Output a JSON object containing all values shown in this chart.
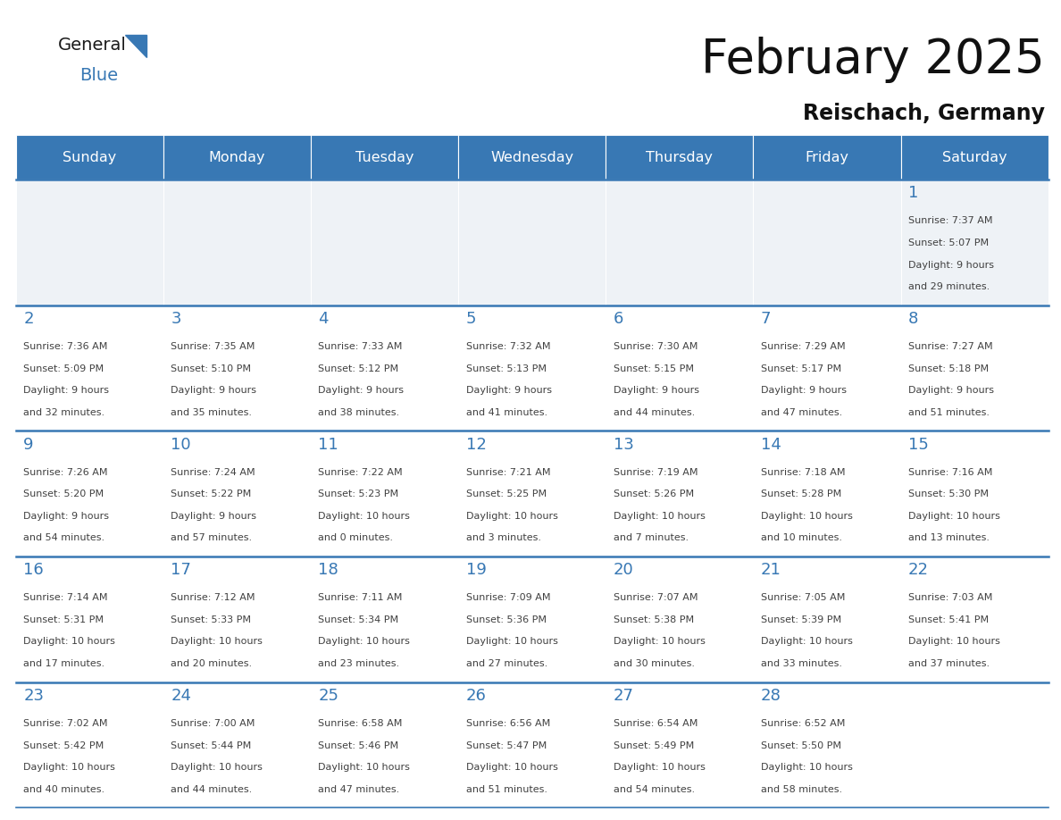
{
  "title": "February 2025",
  "subtitle": "Reischach, Germany",
  "header_color": "#3878b4",
  "header_text_color": "#ffffff",
  "day_names": [
    "Sunday",
    "Monday",
    "Tuesday",
    "Wednesday",
    "Thursday",
    "Friday",
    "Saturday"
  ],
  "background_color": "#ffffff",
  "separator_color": "#3878b4",
  "date_color": "#3878b4",
  "text_color": "#404040",
  "calendar": [
    [
      null,
      null,
      null,
      null,
      null,
      null,
      {
        "day": 1,
        "sunrise": "7:37 AM",
        "sunset": "5:07 PM",
        "daylight": "9 hours and 29 minutes."
      }
    ],
    [
      {
        "day": 2,
        "sunrise": "7:36 AM",
        "sunset": "5:09 PM",
        "daylight": "9 hours and 32 minutes."
      },
      {
        "day": 3,
        "sunrise": "7:35 AM",
        "sunset": "5:10 PM",
        "daylight": "9 hours and 35 minutes."
      },
      {
        "day": 4,
        "sunrise": "7:33 AM",
        "sunset": "5:12 PM",
        "daylight": "9 hours and 38 minutes."
      },
      {
        "day": 5,
        "sunrise": "7:32 AM",
        "sunset": "5:13 PM",
        "daylight": "9 hours and 41 minutes."
      },
      {
        "day": 6,
        "sunrise": "7:30 AM",
        "sunset": "5:15 PM",
        "daylight": "9 hours and 44 minutes."
      },
      {
        "day": 7,
        "sunrise": "7:29 AM",
        "sunset": "5:17 PM",
        "daylight": "9 hours and 47 minutes."
      },
      {
        "day": 8,
        "sunrise": "7:27 AM",
        "sunset": "5:18 PM",
        "daylight": "9 hours and 51 minutes."
      }
    ],
    [
      {
        "day": 9,
        "sunrise": "7:26 AM",
        "sunset": "5:20 PM",
        "daylight": "9 hours and 54 minutes."
      },
      {
        "day": 10,
        "sunrise": "7:24 AM",
        "sunset": "5:22 PM",
        "daylight": "9 hours and 57 minutes."
      },
      {
        "day": 11,
        "sunrise": "7:22 AM",
        "sunset": "5:23 PM",
        "daylight": "10 hours and 0 minutes."
      },
      {
        "day": 12,
        "sunrise": "7:21 AM",
        "sunset": "5:25 PM",
        "daylight": "10 hours and 3 minutes."
      },
      {
        "day": 13,
        "sunrise": "7:19 AM",
        "sunset": "5:26 PM",
        "daylight": "10 hours and 7 minutes."
      },
      {
        "day": 14,
        "sunrise": "7:18 AM",
        "sunset": "5:28 PM",
        "daylight": "10 hours and 10 minutes."
      },
      {
        "day": 15,
        "sunrise": "7:16 AM",
        "sunset": "5:30 PM",
        "daylight": "10 hours and 13 minutes."
      }
    ],
    [
      {
        "day": 16,
        "sunrise": "7:14 AM",
        "sunset": "5:31 PM",
        "daylight": "10 hours and 17 minutes."
      },
      {
        "day": 17,
        "sunrise": "7:12 AM",
        "sunset": "5:33 PM",
        "daylight": "10 hours and 20 minutes."
      },
      {
        "day": 18,
        "sunrise": "7:11 AM",
        "sunset": "5:34 PM",
        "daylight": "10 hours and 23 minutes."
      },
      {
        "day": 19,
        "sunrise": "7:09 AM",
        "sunset": "5:36 PM",
        "daylight": "10 hours and 27 minutes."
      },
      {
        "day": 20,
        "sunrise": "7:07 AM",
        "sunset": "5:38 PM",
        "daylight": "10 hours and 30 minutes."
      },
      {
        "day": 21,
        "sunrise": "7:05 AM",
        "sunset": "5:39 PM",
        "daylight": "10 hours and 33 minutes."
      },
      {
        "day": 22,
        "sunrise": "7:03 AM",
        "sunset": "5:41 PM",
        "daylight": "10 hours and 37 minutes."
      }
    ],
    [
      {
        "day": 23,
        "sunrise": "7:02 AM",
        "sunset": "5:42 PM",
        "daylight": "10 hours and 40 minutes."
      },
      {
        "day": 24,
        "sunrise": "7:00 AM",
        "sunset": "5:44 PM",
        "daylight": "10 hours and 44 minutes."
      },
      {
        "day": 25,
        "sunrise": "6:58 AM",
        "sunset": "5:46 PM",
        "daylight": "10 hours and 47 minutes."
      },
      {
        "day": 26,
        "sunrise": "6:56 AM",
        "sunset": "5:47 PM",
        "daylight": "10 hours and 51 minutes."
      },
      {
        "day": 27,
        "sunrise": "6:54 AM",
        "sunset": "5:49 PM",
        "daylight": "10 hours and 54 minutes."
      },
      {
        "day": 28,
        "sunrise": "6:52 AM",
        "sunset": "5:50 PM",
        "daylight": "10 hours and 58 minutes."
      },
      null
    ]
  ],
  "logo_general_color": "#1a1a1a",
  "logo_blue_color": "#3878b4",
  "logo_triangle_color": "#3878b4"
}
